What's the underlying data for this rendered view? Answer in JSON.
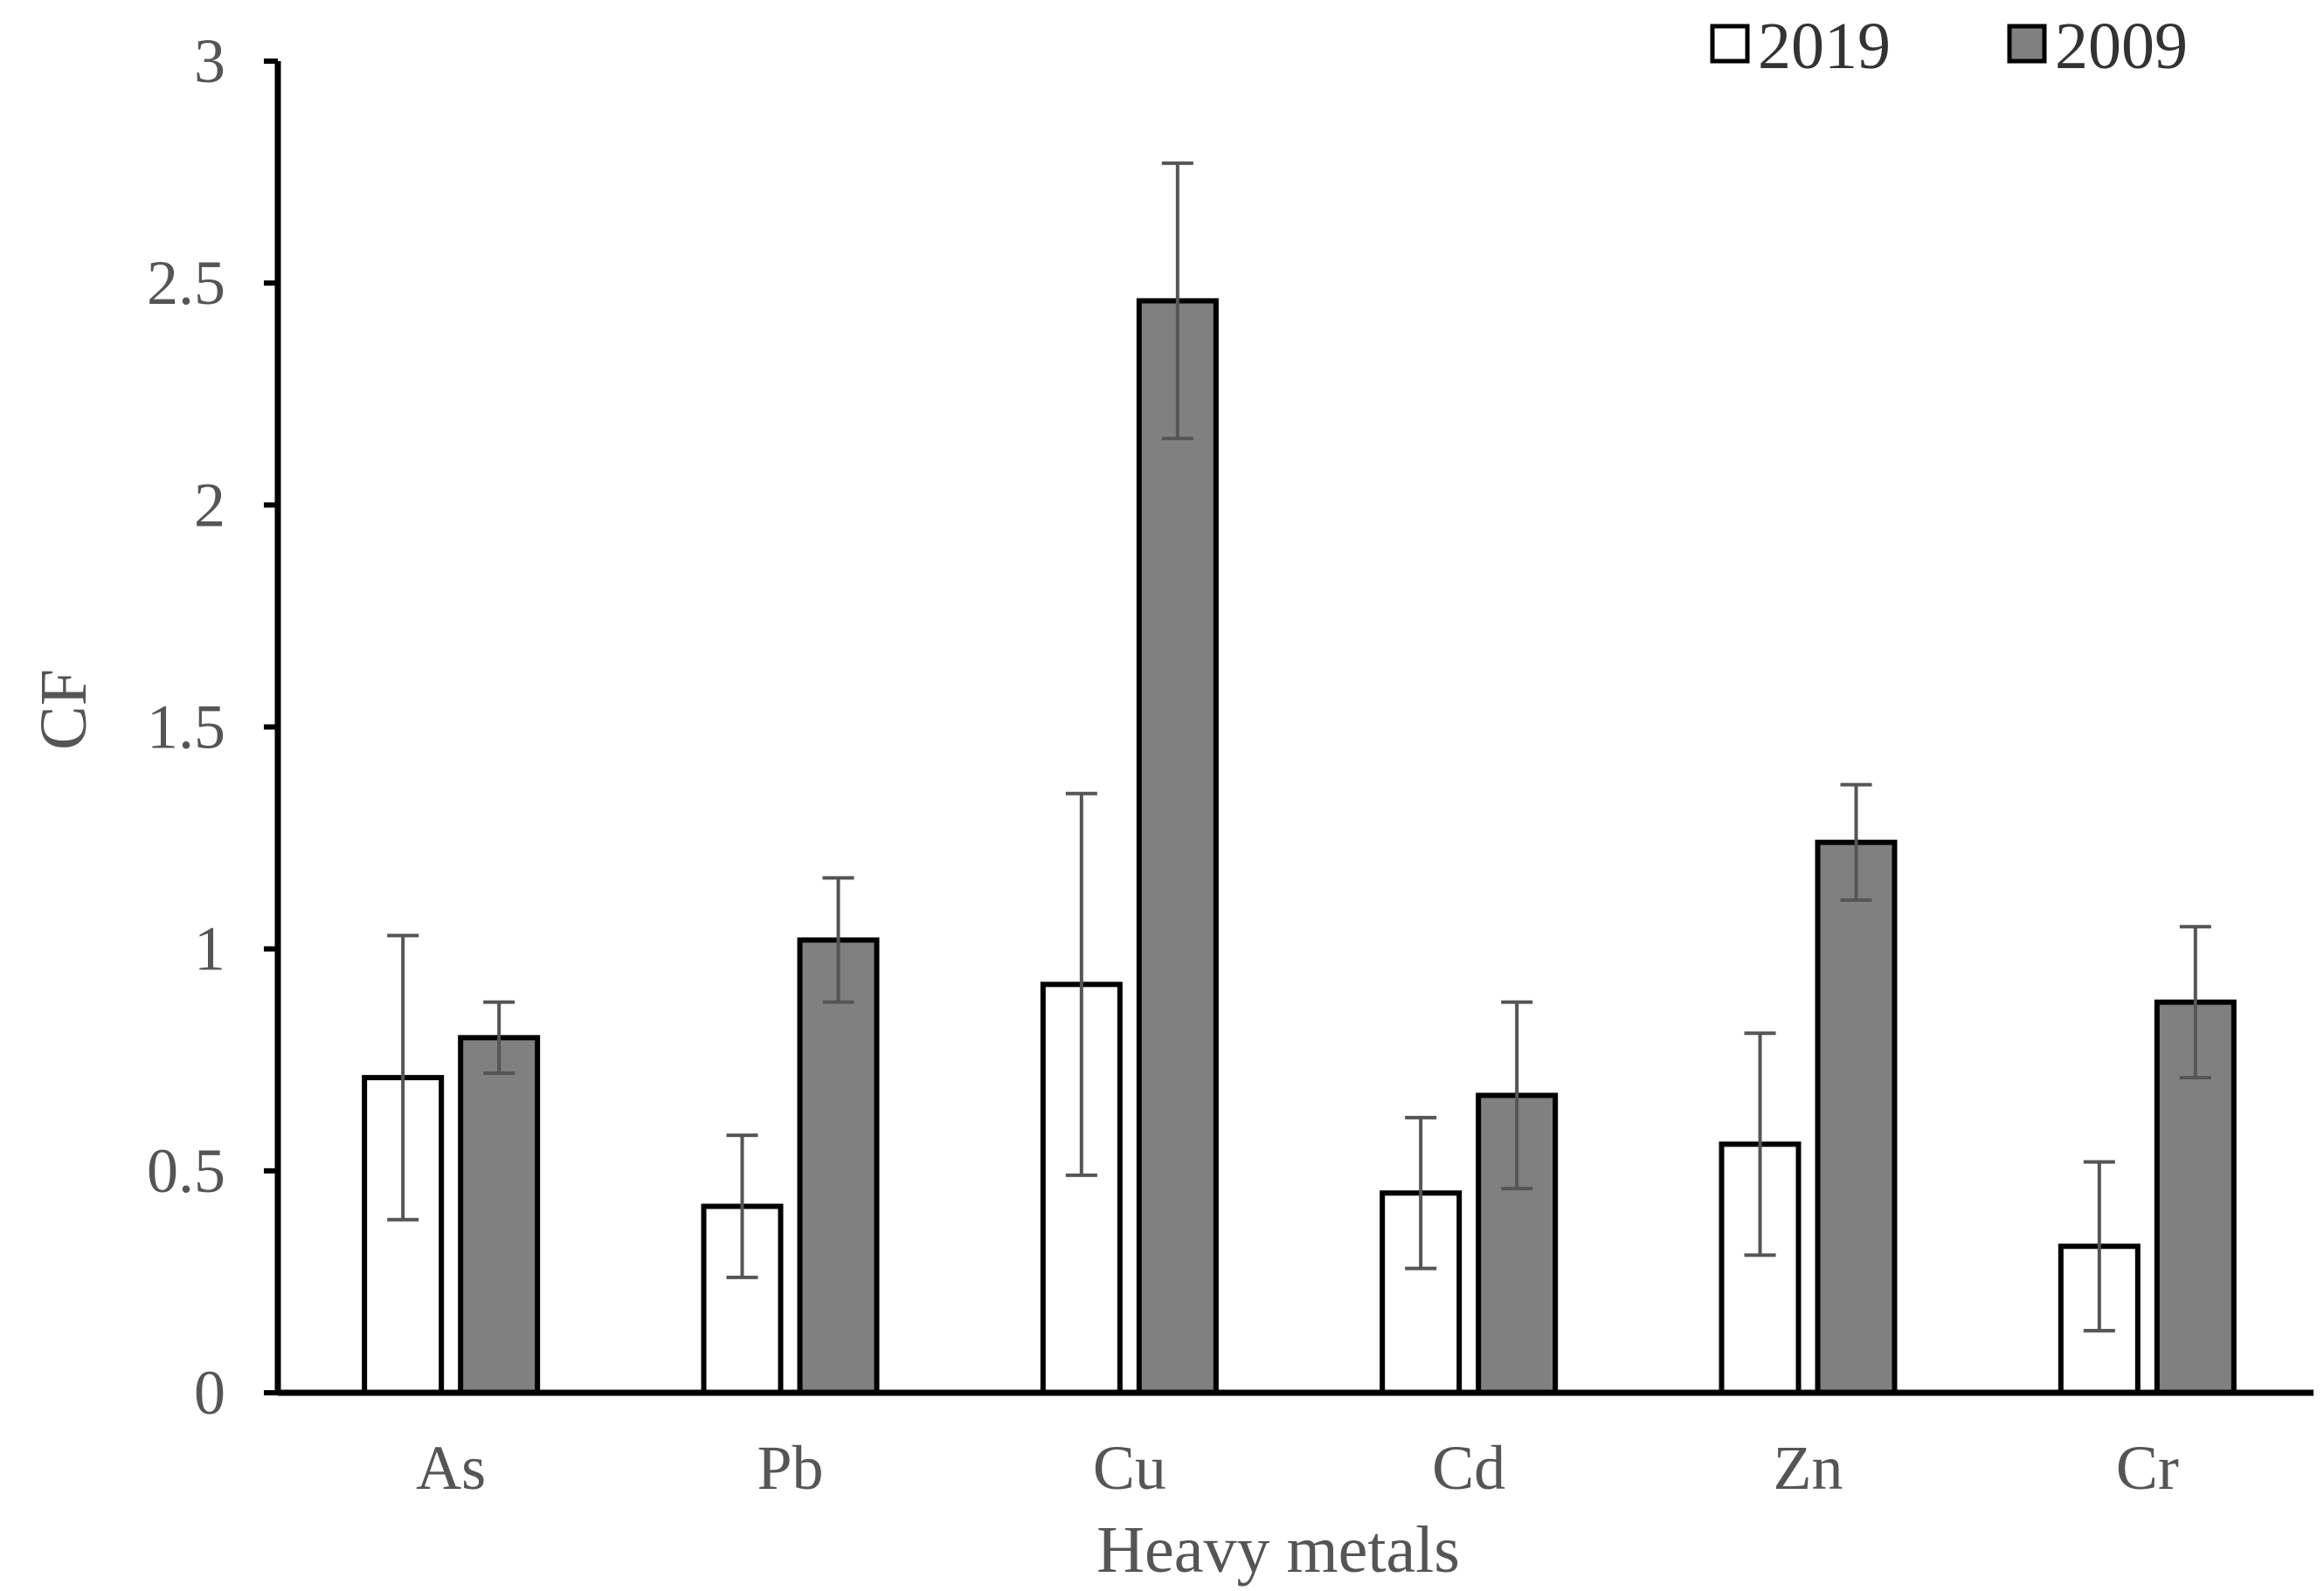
{
  "chart_data": {
    "type": "bar",
    "title": "",
    "xlabel": "Heavy metals",
    "ylabel": "CF",
    "ylim": [
      0,
      3
    ],
    "yticks": [
      0,
      0.5,
      1,
      1.5,
      2,
      2.5,
      3
    ],
    "ytick_labels": [
      "0",
      "0.5",
      "1",
      "1.5",
      "2",
      "2.5",
      "3"
    ],
    "categories": [
      "As",
      "Pb",
      "Cu",
      "Cd",
      "Zn",
      "Cr"
    ],
    "legend_position": "top-right",
    "series": [
      {
        "name": "2019",
        "color": "#ffffff",
        "values": [
          0.71,
          0.42,
          0.92,
          0.45,
          0.56,
          0.33
        ],
        "errors": [
          0.32,
          0.16,
          0.43,
          0.17,
          0.25,
          0.19
        ]
      },
      {
        "name": "2009",
        "color": "#808080",
        "values": [
          0.8,
          1.02,
          2.46,
          0.67,
          1.24,
          0.88
        ],
        "errors": [
          0.08,
          0.14,
          0.31,
          0.21,
          0.13,
          0.17
        ]
      }
    ]
  }
}
